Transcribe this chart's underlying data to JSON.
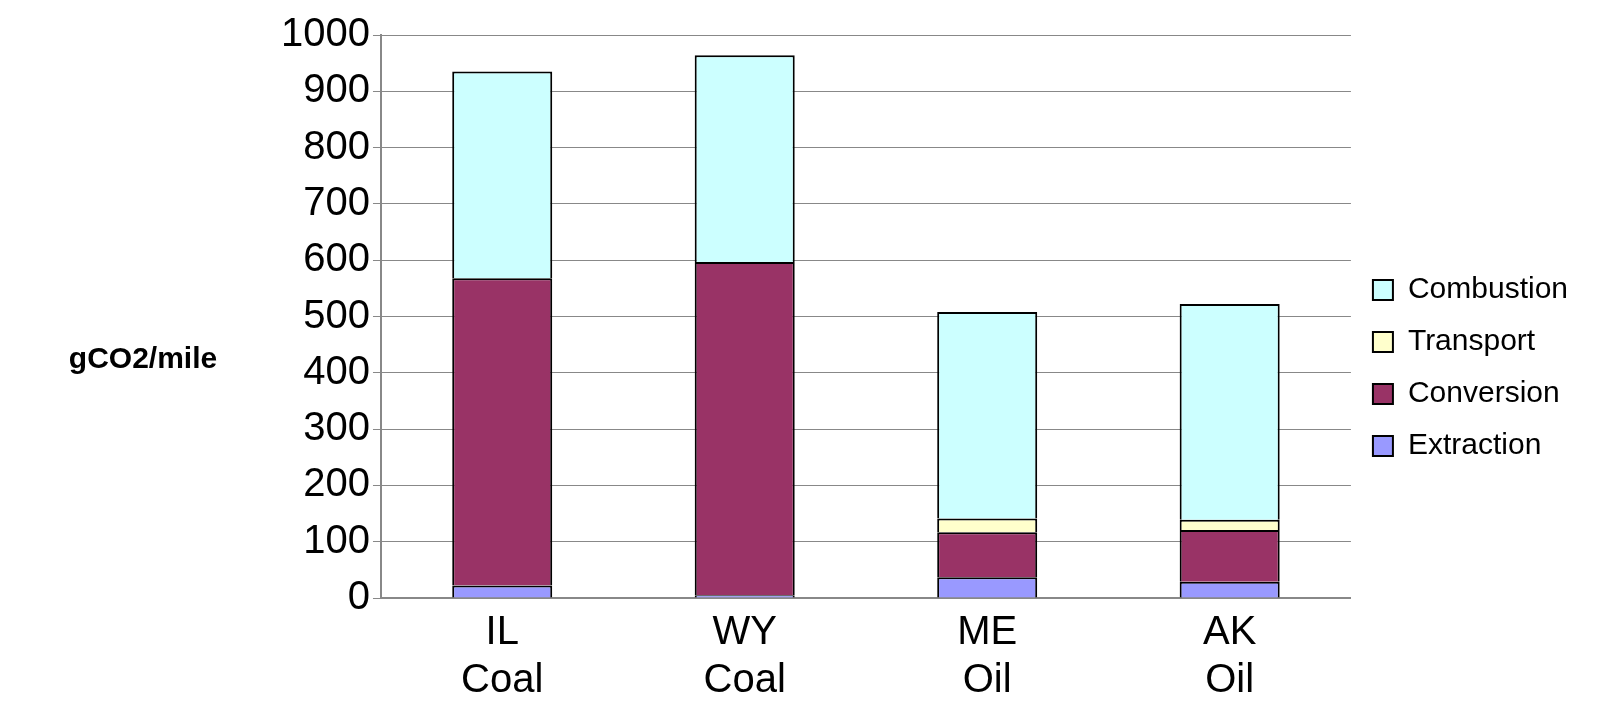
{
  "chart_data": {
    "type": "bar",
    "ylabel": "gCO2/mile",
    "categories": [
      "IL Coal",
      "WY Coal",
      "ME Oil",
      "AK Oil"
    ],
    "series": [
      {
        "name": "Extraction",
        "color": "#9999ff",
        "values": [
          22,
          5,
          37,
          29
        ]
      },
      {
        "name": "Conversion",
        "color": "#993366",
        "values": [
          546,
          592,
          80,
          92
        ]
      },
      {
        "name": "Transport",
        "color": "#ffffcc",
        "values": [
          0,
          0,
          24,
          18
        ]
      },
      {
        "name": "Combustion",
        "color": "#ccffff",
        "values": [
          367,
          367,
          367,
          383
        ]
      }
    ],
    "stacked": true,
    "ylim": [
      0,
      1000
    ],
    "yticks": [
      0,
      100,
      200,
      300,
      400,
      500,
      600,
      700,
      800,
      900,
      1000
    ],
    "grid": "y",
    "legend": "right"
  }
}
